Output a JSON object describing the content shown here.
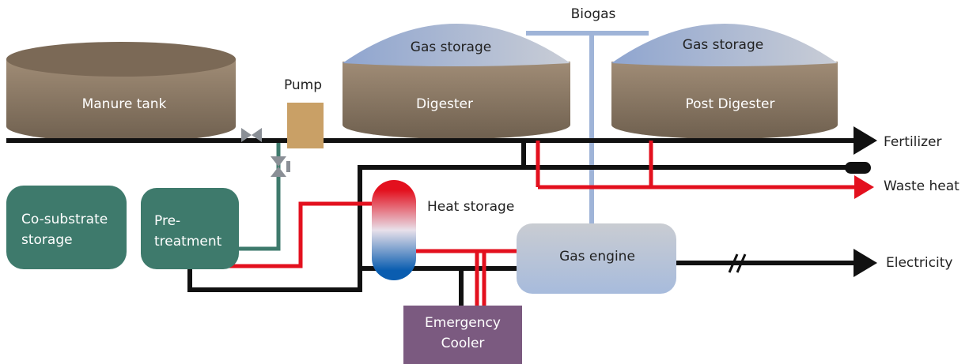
{
  "biogas": "Biogas",
  "pump": "Pump",
  "manure_tank": "Manure tank",
  "digester": {
    "gas_storage": "Gas storage",
    "label": "Digester"
  },
  "post_digester": {
    "gas_storage": "Gas storage",
    "label": "Post Digester"
  },
  "co_substrate": [
    "Co-substrate",
    "storage"
  ],
  "pre_treatment": [
    "Pre-",
    "treatment"
  ],
  "heat_storage": "Heat storage",
  "gas_engine": "Gas engine",
  "emergency_cooler": [
    "Emergency",
    "Cooler"
  ],
  "outputs": [
    "Fertilizer",
    "Waste heat",
    "Electricity"
  ]
}
